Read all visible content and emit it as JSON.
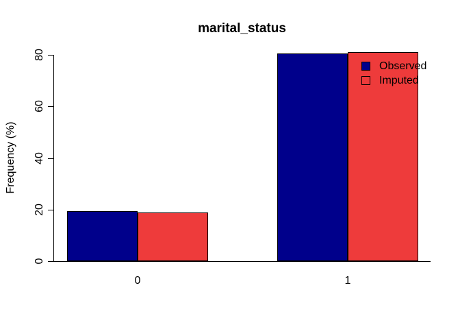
{
  "chart_data": {
    "type": "bar",
    "title": "marital_status",
    "xlabel": "",
    "ylabel": "Frequency (%)",
    "categories": [
      "0",
      "1"
    ],
    "series": [
      {
        "name": "Observed",
        "color": "#00008B",
        "values": [
          19.4,
          80.6
        ]
      },
      {
        "name": "Imputed",
        "color": "#EE3B3B",
        "values": [
          18.9,
          81.1
        ]
      }
    ],
    "ylim": [
      0,
      80
    ],
    "yticks": [
      0,
      20,
      40,
      60,
      80
    ],
    "legend_position": "top-right-inside",
    "grid": false,
    "bar_border_color": "#000000",
    "axis_color": "#000000",
    "background_color": "#FFFFFF"
  }
}
